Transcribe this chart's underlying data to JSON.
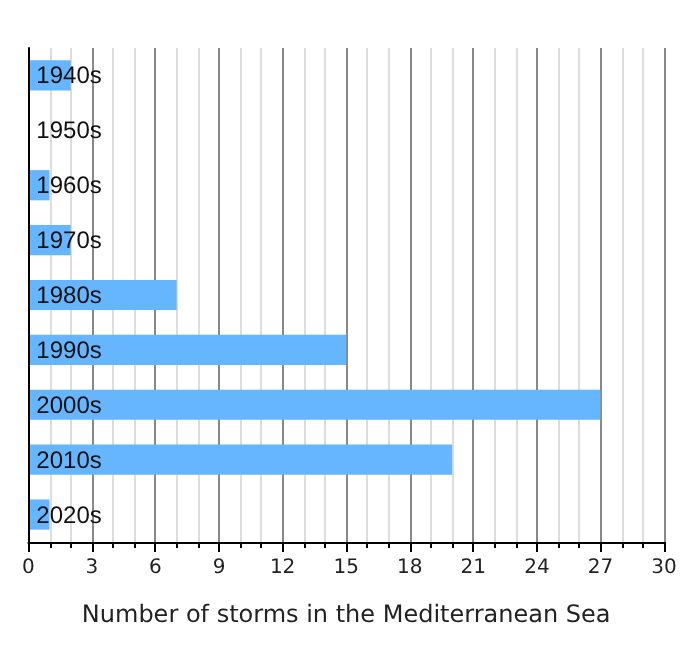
{
  "chart_data": {
    "type": "bar",
    "orientation": "horizontal",
    "xlabel": "Number of storms in the Mediterranean Sea",
    "categories": [
      "1940s",
      "1950s",
      "1960s",
      "1970s",
      "1980s",
      "1990s",
      "2000s",
      "2010s",
      "2020s"
    ],
    "values": [
      2,
      0,
      1,
      2,
      7,
      15,
      27,
      20,
      1
    ],
    "color": "#66b5ff",
    "xlim": [
      0,
      30
    ],
    "xticks": [
      0,
      3,
      6,
      9,
      12,
      15,
      18,
      21,
      24,
      27,
      30
    ],
    "grid": "x"
  }
}
